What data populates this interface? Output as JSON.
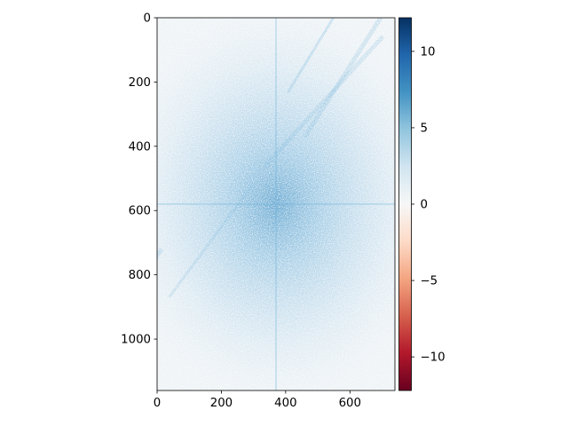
{
  "chart_data": {
    "type": "heatmap",
    "title": "",
    "xlabel": "",
    "ylabel": "",
    "image_extent": {
      "x": [
        0,
        740
      ],
      "y": [
        0,
        1160
      ]
    },
    "x_ticks": [
      {
        "value": 0,
        "label": "0"
      },
      {
        "value": 200,
        "label": "200"
      },
      {
        "value": 400,
        "label": "400"
      },
      {
        "value": 600,
        "label": "600"
      }
    ],
    "y_ticks": [
      {
        "value": 0,
        "label": "0"
      },
      {
        "value": 200,
        "label": "200"
      },
      {
        "value": 400,
        "label": "400"
      },
      {
        "value": 600,
        "label": "600"
      },
      {
        "value": 800,
        "label": "800"
      },
      {
        "value": 1000,
        "label": "1000"
      }
    ],
    "y_axis_inverted": true,
    "grid": false,
    "colormap": "RdBu",
    "colorbar": {
      "vmin": -12.2,
      "vmax": 12.2,
      "ticks": [
        {
          "value": 10,
          "label": "10"
        },
        {
          "value": 5,
          "label": "5"
        },
        {
          "value": 0,
          "label": "0"
        },
        {
          "value": -5,
          "label": "−5"
        },
        {
          "value": -10,
          "label": "−10"
        }
      ]
    },
    "content": {
      "center": {
        "x": 370,
        "y": 580
      },
      "peak_value": 12,
      "background_value": 0.5,
      "description_note": ""
    }
  },
  "colors": {
    "background": "#ffffff",
    "axis": "#000000",
    "cmap_stops": [
      "#67001f",
      "#b2182b",
      "#d6604d",
      "#f4a582",
      "#fddbc7",
      "#f7f7f7",
      "#d1e5f0",
      "#92c5de",
      "#4393c3",
      "#2166ac",
      "#053061"
    ]
  }
}
